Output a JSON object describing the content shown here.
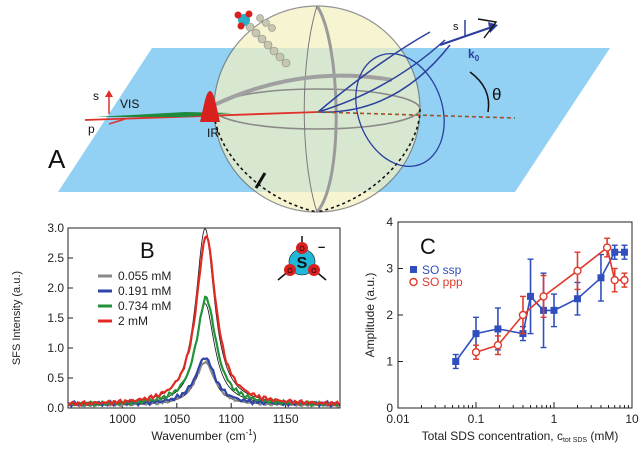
{
  "panel_a": {
    "letter": "A",
    "labels": {
      "vis": "VIS",
      "ir": "IR",
      "s_left": "s",
      "p_left": "p",
      "s_right": "s",
      "k0": "k",
      "k0_sub": "0",
      "theta": "θ"
    },
    "colors": {
      "plane": "#7fc8f0",
      "sphere": "#f3efbf",
      "vis": "#1e8a3c",
      "ir": "#d8201f",
      "beam": "#e0302a",
      "arrow": "#2a3f9e"
    }
  },
  "chart_data": [
    {
      "panel": "B",
      "type": "line",
      "xlabel": "Wavenumber (cm",
      "xlabel_sup": "-1",
      "xlabel_close": ")",
      "ylabel": "SFS Intensity (a.u.)",
      "xlim": [
        950,
        1200
      ],
      "ylim": [
        0,
        3.0
      ],
      "xticks": [
        1000,
        1050,
        1100,
        1150
      ],
      "yticks": [
        0.0,
        0.5,
        1.0,
        1.5,
        2.0,
        2.5,
        3.0
      ],
      "ytick_labels": [
        "0.0",
        "0.5",
        "1.0",
        "1.5",
        "2.0",
        "2.5",
        "3.0"
      ],
      "grid": false,
      "legend_position": "top-left",
      "series": [
        {
          "name": "0.055 mM",
          "color": "#8a8a8a",
          "peak_x": 1076,
          "peak_y": 0.72,
          "width": 11,
          "baseline": 0.05
        },
        {
          "name": "0.191 mM",
          "color": "#2f45a8",
          "peak_x": 1076,
          "peak_y": 0.78,
          "width": 11,
          "baseline": 0.06
        },
        {
          "name": "0.734 mM",
          "color": "#23923a",
          "peak_x": 1077,
          "peak_y": 1.78,
          "width": 11,
          "baseline": 0.05
        },
        {
          "name": "2 mM",
          "color": "#e02a24",
          "peak_x": 1077,
          "peak_y": 2.82,
          "width": 11,
          "baseline": 0.05
        }
      ],
      "fit_lines": [
        {
          "peak_x": 1076,
          "peak_y": 2.95,
          "width": 10.5
        },
        {
          "peak_x": 1076,
          "peak_y": 1.7,
          "width": 10.5
        },
        {
          "peak_x": 1076,
          "peak_y": 0.72,
          "width": 10.5
        }
      ],
      "inset_symbols": {
        "center": "S",
        "oxygen": "O",
        "charge": "–"
      }
    },
    {
      "panel": "C",
      "type": "scatter",
      "xlabel": "Total SDS concentration, c",
      "xlabel_sub": "tot SDS",
      "xlabel_unit": " (mM)",
      "ylabel": "Amplitude (a.u.)",
      "xscale": "log",
      "xlim": [
        0.01,
        10
      ],
      "ylim": [
        0,
        4
      ],
      "xticks": [
        0.01,
        0.1,
        1,
        10
      ],
      "xtick_labels": [
        "0.01",
        "0.1",
        "1",
        "10"
      ],
      "yticks": [
        0,
        1,
        2,
        3,
        4
      ],
      "ytick_labels": [
        "0",
        "1",
        "2",
        "3",
        "4"
      ],
      "grid": false,
      "legend_position": "top-left",
      "series": [
        {
          "name": "SO ssp",
          "color": "#2f4fbf",
          "marker": "filled-square",
          "x": [
            0.055,
            0.1,
            0.191,
            0.4,
            0.5,
            0.734,
            1.0,
            2.0,
            4.0,
            6.0,
            8.0
          ],
          "y": [
            1.0,
            1.6,
            1.7,
            1.6,
            2.4,
            2.1,
            2.1,
            2.35,
            2.8,
            3.35,
            3.35
          ],
          "err": [
            0.15,
            0.35,
            0.45,
            0.15,
            0.8,
            0.8,
            0.35,
            0.35,
            0.5,
            0.15,
            0.15
          ]
        },
        {
          "name": "SO ppp",
          "color": "#e03a2a",
          "marker": "open-circle",
          "x": [
            0.1,
            0.191,
            0.4,
            0.734,
            2.0,
            4.8,
            6.0,
            8.0
          ],
          "y": [
            1.2,
            1.35,
            2.0,
            2.4,
            2.95,
            3.45,
            2.75,
            2.75
          ],
          "err": [
            0.15,
            0.2,
            0.4,
            0.45,
            0.4,
            0.2,
            0.25,
            0.15
          ]
        }
      ]
    }
  ]
}
